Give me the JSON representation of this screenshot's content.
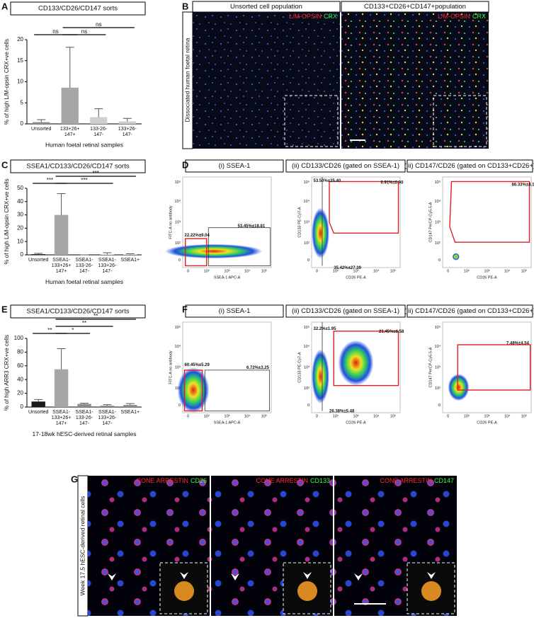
{
  "panel_labels": [
    "A",
    "B",
    "C",
    "D",
    "E",
    "F",
    "G"
  ],
  "chart_data": [
    {
      "type": "bar",
      "title": "CD133/CD26/CD147 sorts",
      "categories": [
        "Unsorted",
        "133+26+\n147+",
        "133-26-\n147-",
        "133+26-\n147-"
      ],
      "values": [
        0.4,
        8.6,
        1.6,
        0.6
      ],
      "errors": [
        0.6,
        9.6,
        2.0,
        0.7
      ],
      "colors": [
        "#8c8c8c",
        "#a6a6a6",
        "#cfcfcf",
        "#cfcfcf"
      ],
      "ylim": [
        0,
        20
      ],
      "yticks": [
        0,
        5,
        10,
        15,
        20
      ],
      "ylabel": "% of high L/M-opsin CRX+ve cells",
      "xlabel": "Human foetal retinal samples",
      "significance": [
        {
          "label": "ns",
          "between": [
            0,
            1
          ]
        },
        {
          "label": "ns",
          "between": [
            1,
            2
          ]
        },
        {
          "label": "ns",
          "between": [
            1,
            3
          ]
        }
      ]
    },
    {
      "type": "bar",
      "title": "SSEA1/CD133/CD26/CD147 sorts",
      "categories": [
        "Unsorted",
        "SSEA1-\n133+26+\n147+",
        "SSEA1-\n133-26-\n147-",
        "SSEA1-\n133+26-\n147-",
        "SSEA1+"
      ],
      "values": [
        0.5,
        30,
        0,
        0.3,
        0.3
      ],
      "errors": [
        0.6,
        16,
        0,
        1.3,
        0.5
      ],
      "colors": [
        "#1a1a1a",
        "#a6a6a6",
        "#cfcfcf",
        "#cfcfcf",
        "#cfcfcf"
      ],
      "ylim": [
        0,
        50
      ],
      "yticks": [
        0,
        10,
        20,
        30,
        40,
        50
      ],
      "ylabel": "% of high L/M-opsin CRX+ve cells",
      "xlabel": "Human foetal retinal samples",
      "significance": [
        {
          "label": "***",
          "between": [
            0,
            1
          ]
        },
        {
          "label": "***",
          "between": [
            1,
            3
          ]
        },
        {
          "label": "***",
          "between": [
            1,
            4
          ]
        }
      ]
    },
    {
      "type": "bar",
      "title": "SSEA1/CD133/CD26/CD147 sorts",
      "categories": [
        "Unsorted",
        "SSEA1-\n133+26+\n147+",
        "SSEA1-\n133-26-\n147-",
        "SSEA1-\n133+26-\n147-",
        "SSEA1+"
      ],
      "values": [
        8,
        55,
        4.5,
        2,
        3
      ],
      "errors": [
        3,
        30,
        1,
        1.5,
        2
      ],
      "colors": [
        "#1a1a1a",
        "#a6a6a6",
        "#8c8c8c",
        "#8c8c8c",
        "#8c8c8c"
      ],
      "ylim": [
        0,
        100
      ],
      "yticks": [
        0,
        20,
        40,
        60,
        80,
        100
      ],
      "ylabel": "% of high ARR3 CRX+ve cells",
      "xlabel": "17-18wk hESC-derived retinal samples",
      "significance": [
        {
          "label": "**",
          "between": [
            0,
            1
          ]
        },
        {
          "label": "*",
          "between": [
            1,
            2
          ]
        },
        {
          "label": "**",
          "between": [
            1,
            3
          ]
        },
        {
          "label": "**",
          "between": [
            1,
            4
          ]
        }
      ]
    }
  ],
  "panel_b": {
    "side_label": "Dissociated human foetal retina",
    "images": [
      {
        "title": "Unsorted cell population",
        "stains": [
          "L/M-OPSIN",
          "CRX"
        ]
      },
      {
        "title": "CD133+CD26+CD147+population",
        "stains": [
          "L/M-OPSIN",
          "CRX"
        ]
      }
    ]
  },
  "flow_panels": [
    {
      "plots": [
        {
          "title": "(i) SSEA-1",
          "ylabel": "FITC-A no antibody",
          "xlabel": "SSEA-1 APC-A",
          "gates": [
            "22.22%±9.04",
            "53.45%±18.81"
          ]
        },
        {
          "title": "(ii) CD133/CD26 (gated on SSEA-1)",
          "ylabel": "CD133 PE-Cy7-A",
          "xlabel": "CD26 PE-A",
          "gates": [
            "53.50%±25.40",
            "0.91%±0.90",
            "35.42%±27.39"
          ]
        },
        {
          "title": "(iii) CD147/CD26 (gated on CD133+CD26+)",
          "ylabel": "CD147 PerCP-Cy5-5-A",
          "xlabel": "CD26 PE-A",
          "gates": [
            "86.33%±4.13"
          ]
        }
      ]
    },
    {
      "plots": [
        {
          "title": "(i) SSEA-1",
          "ylabel": "FITC-A no antibody",
          "xlabel": "SSEA-1 APC-A",
          "gates": [
            "60.45%±5.29",
            "6.72%±3.25"
          ]
        },
        {
          "title": "(ii) CD133/CD26 (gated on SSEA-1)",
          "ylabel": "CD133 PE-Cy7-A",
          "xlabel": "CD26 PE-A",
          "gates": [
            "32.2%±1.95",
            "21.45%±6.58",
            "26.38%±5.48"
          ]
        },
        {
          "title": "(iii) CD147/CD26 (gated on CD133+CD26+)",
          "ylabel": "CD147 PerCP-Cy5-5-A",
          "xlabel": "CD26 PE-A",
          "gates": [
            "7.48%±4.54"
          ]
        }
      ]
    }
  ],
  "flow_ticks": {
    "y": [
      "10⁵",
      "10⁴",
      "10³",
      "10²",
      "0"
    ],
    "x": [
      "0",
      "10²",
      "10³",
      "10⁴",
      "10⁵"
    ]
  },
  "panel_g": {
    "side_label": "Week 17.5 hESC-derived retinal cells",
    "images": [
      {
        "stains": [
          "CONE ARRESTIN",
          "CD26"
        ]
      },
      {
        "stains": [
          "CONE ARRESTIN",
          "CD133"
        ]
      },
      {
        "stains": [
          "CONE ARRESTIN",
          "CD147"
        ]
      }
    ]
  }
}
